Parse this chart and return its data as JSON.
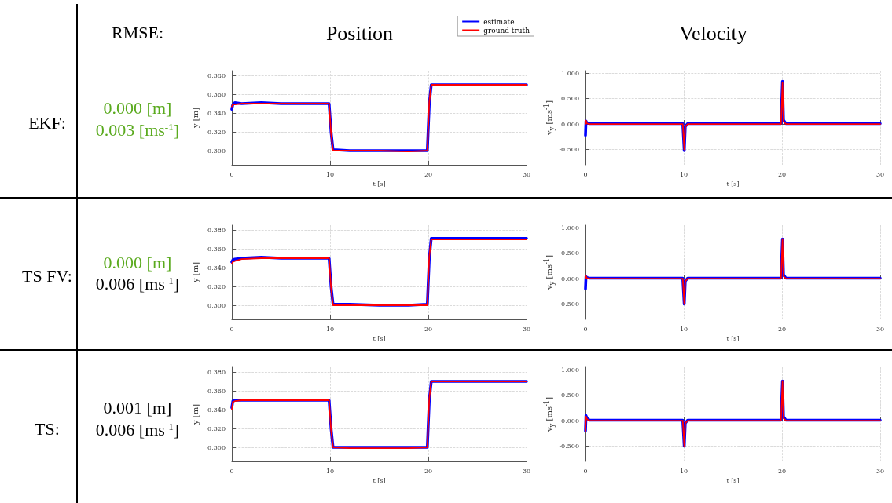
{
  "chart_data": [
    {
      "type": "other",
      "title": "RMSE:",
      "annotations": [
        "EKF:",
        "0.000 [m]",
        "0.003 [ms$^{-1}$]",
        "TS FV:",
        "0.000 [m]",
        "0.006 [ms$^{-1}$]",
        "TS:",
        "0.001 [m]",
        "0.006 [ms$^{-1}$]"
      ]
    },
    {
      "type": "line",
      "title": "Position",
      "xlabel": "t [s]",
      "ylabel": "y [m]",
      "marker": "none",
      "grid": true,
      "legend": "top right",
      "x": [
        0,
        0.1,
        0.3,
        1,
        3,
        5,
        7,
        9.9,
        10.1,
        10.3,
        12,
        15,
        18,
        19.9,
        20.1,
        20.3,
        22,
        25,
        28,
        30
      ],
      "xlim": [
        0,
        30
      ],
      "xticks": [
        0,
        10,
        20,
        30
      ],
      "ylim": [
        0.285,
        0.385
      ],
      "yticks": [
        {
          "value": 0.3,
          "label": "0.300"
        },
        {
          "value": 0.32,
          "label": "0.320"
        },
        {
          "value": 0.34,
          "label": "0.340"
        },
        {
          "value": 0.36,
          "label": "0.360"
        },
        {
          "value": 0.38,
          "label": "0.380"
        }
      ],
      "series": [
        {
          "name": "estimate",
          "color": "#0000ff",
          "values": [
            0.344,
            0.349,
            0.351,
            0.35,
            0.351,
            0.35,
            0.35,
            0.35,
            0.32,
            0.301,
            0.3,
            0.3,
            0.3,
            0.3,
            0.35,
            0.37,
            0.37,
            0.37,
            0.37,
            0.37
          ]
        },
        {
          "name": "ground truth",
          "color": "#ff0000",
          "values": [
            0.347,
            0.349,
            0.349,
            0.35,
            0.35,
            0.35,
            0.35,
            0.35,
            0.318,
            0.3,
            0.3,
            0.3,
            0.299,
            0.3,
            0.352,
            0.37,
            0.37,
            0.37,
            0.37,
            0.37
          ]
        }
      ]
    },
    {
      "type": "line",
      "title": "Velocity",
      "xlabel": "t [s]",
      "ylabel": "v$_{y}$ [ms$^{-1}$]",
      "marker": "none",
      "grid": true,
      "x": [
        0,
        0.05,
        0.15,
        0.4,
        5,
        9.9,
        10.05,
        10.15,
        10.4,
        15,
        19.9,
        20.05,
        20.15,
        20.4,
        25,
        30
      ],
      "xlim": [
        0,
        30
      ],
      "xticks": [
        0,
        10,
        20,
        30
      ],
      "ylim": [
        -0.8,
        1.05
      ],
      "yticks": [
        {
          "value": -0.5,
          "label": "-0.500"
        },
        {
          "value": 0,
          "label": "0.000"
        },
        {
          "value": 0.5,
          "label": "0.500"
        },
        {
          "value": 1,
          "label": "1.000"
        }
      ],
      "series": [
        {
          "color": "#0000ff",
          "values": [
            -0.22,
            0.06,
            0.02,
            0.01,
            0.01,
            0.01,
            -0.52,
            -0.05,
            0.01,
            0.01,
            0.01,
            0.84,
            0.08,
            0.01,
            0.01,
            0.01
          ]
        },
        {
          "color": "#ff0000",
          "values": [
            0.0,
            0.07,
            0.01,
            0.0,
            0.0,
            0.0,
            -0.5,
            -0.05,
            0.0,
            0.0,
            0.0,
            0.82,
            0.05,
            0.0,
            0.0,
            0.0
          ]
        }
      ]
    },
    {
      "type": "line",
      "xlabel": "t [s]",
      "ylabel": "y [m]",
      "marker": "none",
      "grid": true,
      "x": [
        0,
        0.1,
        0.3,
        1,
        3,
        5,
        7,
        9.9,
        10.1,
        10.3,
        12,
        15,
        18,
        19.9,
        20.1,
        20.3,
        22,
        25,
        28,
        30
      ],
      "xlim": [
        0,
        30
      ],
      "xticks": [
        0,
        10,
        20,
        30
      ],
      "ylim": [
        0.285,
        0.385
      ],
      "yticks": [
        {
          "value": 0.3,
          "label": "0.300"
        },
        {
          "value": 0.32,
          "label": "0.320"
        },
        {
          "value": 0.34,
          "label": "0.340"
        },
        {
          "value": 0.36,
          "label": "0.360"
        },
        {
          "value": 0.38,
          "label": "0.380"
        }
      ],
      "series": [
        {
          "color": "#0000ff",
          "values": [
            0.346,
            0.348,
            0.349,
            0.35,
            0.351,
            0.35,
            0.35,
            0.35,
            0.32,
            0.301,
            0.301,
            0.3,
            0.3,
            0.301,
            0.35,
            0.371,
            0.371,
            0.371,
            0.371,
            0.371
          ]
        },
        {
          "color": "#ff0000",
          "values": [
            0.344,
            0.346,
            0.347,
            0.349,
            0.35,
            0.35,
            0.35,
            0.35,
            0.318,
            0.3,
            0.3,
            0.3,
            0.3,
            0.3,
            0.352,
            0.37,
            0.37,
            0.37,
            0.37,
            0.37
          ]
        }
      ]
    },
    {
      "type": "line",
      "xlabel": "t [s]",
      "ylabel": "v$_{y}$ [ms$^{-1}$]",
      "marker": "none",
      "grid": true,
      "x": [
        0,
        0.05,
        0.15,
        0.4,
        5,
        9.9,
        10.05,
        10.15,
        10.4,
        15,
        19.9,
        20.05,
        20.15,
        20.4,
        25,
        30
      ],
      "xlim": [
        0,
        30
      ],
      "xticks": [
        0,
        10,
        20,
        30
      ],
      "ylim": [
        -0.8,
        1.05
      ],
      "yticks": [
        {
          "value": -0.5,
          "label": "-0.500"
        },
        {
          "value": 0,
          "label": "0.000"
        },
        {
          "value": 0.5,
          "label": "0.500"
        },
        {
          "value": 1,
          "label": "1.000"
        }
      ],
      "series": [
        {
          "color": "#0000ff",
          "values": [
            -0.2,
            0.04,
            0.02,
            0.01,
            0.01,
            0.01,
            -0.5,
            -0.05,
            0.01,
            0.01,
            0.01,
            0.78,
            0.08,
            0.01,
            0.01,
            0.01
          ]
        },
        {
          "color": "#ff0000",
          "values": [
            0.0,
            0.05,
            0.01,
            0.0,
            0.0,
            0.0,
            -0.5,
            -0.05,
            0.0,
            0.0,
            0.0,
            0.78,
            0.05,
            0.0,
            0.0,
            0.0
          ]
        }
      ]
    },
    {
      "type": "line",
      "xlabel": "t [s]",
      "ylabel": "y [m]",
      "marker": "none",
      "grid": true,
      "x": [
        0,
        0.1,
        0.3,
        1,
        3,
        5,
        7,
        9.9,
        10.1,
        10.3,
        12,
        15,
        18,
        19.9,
        20.1,
        20.3,
        22,
        25,
        28,
        30
      ],
      "xlim": [
        0,
        30
      ],
      "xticks": [
        0,
        10,
        20,
        30
      ],
      "ylim": [
        0.285,
        0.385
      ],
      "yticks": [
        {
          "value": 0.3,
          "label": "0.300"
        },
        {
          "value": 0.32,
          "label": "0.320"
        },
        {
          "value": 0.34,
          "label": "0.340"
        },
        {
          "value": 0.36,
          "label": "0.360"
        },
        {
          "value": 0.38,
          "label": "0.380"
        }
      ],
      "series": [
        {
          "color": "#0000ff",
          "values": [
            0.342,
            0.349,
            0.35,
            0.35,
            0.35,
            0.35,
            0.35,
            0.35,
            0.32,
            0.3,
            0.3,
            0.3,
            0.3,
            0.3,
            0.35,
            0.37,
            0.37,
            0.37,
            0.37,
            0.37
          ]
        },
        {
          "color": "#ff0000",
          "values": [
            0.34,
            0.348,
            0.349,
            0.35,
            0.35,
            0.35,
            0.35,
            0.35,
            0.318,
            0.3,
            0.299,
            0.299,
            0.299,
            0.3,
            0.352,
            0.37,
            0.37,
            0.37,
            0.37,
            0.37
          ]
        }
      ]
    },
    {
      "type": "line",
      "xlabel": "t [s]",
      "ylabel": "v$_{y}$ [ms$^{-1}$]",
      "marker": "none",
      "grid": true,
      "x": [
        0,
        0.05,
        0.15,
        0.4,
        5,
        9.9,
        10.05,
        10.15,
        10.4,
        15,
        19.9,
        20.05,
        20.15,
        20.4,
        25,
        30
      ],
      "xlim": [
        0,
        30
      ],
      "xticks": [
        0,
        10,
        20,
        30
      ],
      "ylim": [
        -0.8,
        1.05
      ],
      "yticks": [
        {
          "value": -0.5,
          "label": "-0.500"
        },
        {
          "value": 0,
          "label": "0.000"
        },
        {
          "value": 0.5,
          "label": "0.500"
        },
        {
          "value": 1,
          "label": "1.000"
        }
      ],
      "series": [
        {
          "color": "#0000ff",
          "values": [
            -0.2,
            0.1,
            0.05,
            0.01,
            0.01,
            0.01,
            -0.5,
            -0.05,
            0.01,
            0.01,
            0.01,
            0.78,
            0.08,
            0.01,
            0.01,
            0.01
          ]
        },
        {
          "color": "#ff0000",
          "values": [
            -0.2,
            0.08,
            0.03,
            0.0,
            0.0,
            0.0,
            -0.5,
            -0.05,
            0.0,
            0.0,
            0.0,
            0.78,
            0.05,
            0.0,
            0.0,
            0.0
          ]
        }
      ]
    }
  ]
}
